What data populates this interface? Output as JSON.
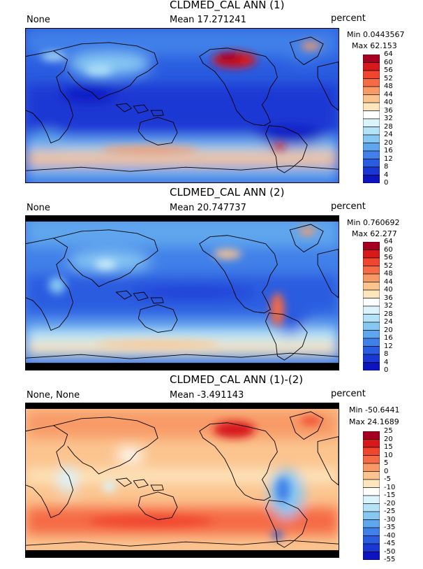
{
  "panels": [
    {
      "title": "CLDMED_CAL ANN (1)",
      "left_label": "None",
      "mean": "Mean 17.271241",
      "units": "percent",
      "min": "Min 0.0443567",
      "max": "Max 62.153",
      "ticks": [
        "64",
        "60",
        "56",
        "52",
        "48",
        "44",
        "40",
        "36",
        "32",
        "28",
        "24",
        "20",
        "16",
        "12",
        "8",
        "4",
        "0"
      ],
      "colors": [
        "#a50021",
        "#d7191c",
        "#f0452f",
        "#f56b45",
        "#f89a66",
        "#fbc48f",
        "#fde6bd",
        "#ffffff",
        "#dbf3fb",
        "#b4e3f7",
        "#87c8f3",
        "#5ea6ee",
        "#4180e8",
        "#2a5ce0",
        "#1a37d4",
        "#0c14c2"
      ]
    },
    {
      "title": "CLDMED_CAL ANN (2)",
      "left_label": "None",
      "mean": "Mean 20.747737",
      "units": "percent",
      "min": "Min 0.760692",
      "max": "Max 62.277",
      "ticks": [
        "64",
        "60",
        "56",
        "52",
        "48",
        "44",
        "40",
        "36",
        "32",
        "28",
        "24",
        "20",
        "16",
        "12",
        "8",
        "4",
        "0"
      ],
      "colors": [
        "#a50021",
        "#d7191c",
        "#f0452f",
        "#f56b45",
        "#f89a66",
        "#fbc48f",
        "#fde6bd",
        "#ffffff",
        "#dbf3fb",
        "#b4e3f7",
        "#87c8f3",
        "#5ea6ee",
        "#4180e8",
        "#2a5ce0",
        "#1a37d4",
        "#0c14c2"
      ]
    },
    {
      "title": "CLDMED_CAL ANN (1)-(2)",
      "left_label": "None, None",
      "mean": "Mean -3.491143",
      "units": "percent",
      "min": "Min -50.6441",
      "max": "Max 24.1689",
      "ticks": [
        "25",
        "20",
        "15",
        "10",
        "5",
        "0",
        "-5",
        "-10",
        "-15",
        "-20",
        "-25",
        "-30",
        "-35",
        "-40",
        "-45",
        "-50",
        "-55"
      ],
      "colors": [
        "#a50021",
        "#d7191c",
        "#f0452f",
        "#f56b45",
        "#f89a66",
        "#fbc48f",
        "#fde6bd",
        "#ffffff",
        "#dbf3fb",
        "#b4e3f7",
        "#87c8f3",
        "#5ea6ee",
        "#4180e8",
        "#2a5ce0",
        "#1a37d4",
        "#0c14c2"
      ]
    }
  ],
  "chart_data": [
    {
      "type": "heatmap",
      "title": "CLDMED_CAL ANN (1)",
      "units": "percent",
      "min": 0.0443567,
      "max": 62.153,
      "mean": 17.271241,
      "colorbar_range": [
        0,
        64
      ],
      "colorbar_step": 4
    },
    {
      "type": "heatmap",
      "title": "CLDMED_CAL ANN (2)",
      "units": "percent",
      "min": 0.760692,
      "max": 62.277,
      "mean": 20.747737,
      "colorbar_range": [
        0,
        64
      ],
      "colorbar_step": 4
    },
    {
      "type": "heatmap",
      "title": "CLDMED_CAL ANN (1)-(2)",
      "units": "percent",
      "min": -50.6441,
      "max": 24.1689,
      "mean": -3.491143,
      "colorbar_range": [
        -55,
        25
      ],
      "colorbar_step": 5
    }
  ]
}
